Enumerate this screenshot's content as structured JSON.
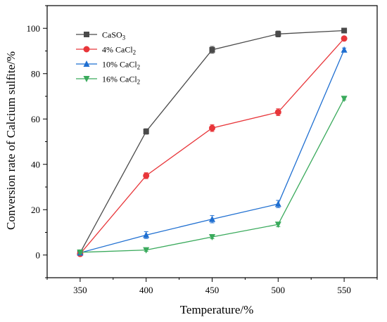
{
  "chart_data": {
    "type": "line",
    "xlabel": "Temperature/%",
    "ylabel": "Conversion rate of Calcium sulfite/%",
    "xlim": [
      325,
      575
    ],
    "ylim": [
      -10,
      110
    ],
    "x": [
      350,
      400,
      450,
      500,
      550
    ],
    "x_ticks": [
      "350",
      "400",
      "450",
      "500",
      "550"
    ],
    "y_ticks": [
      "0",
      "20",
      "40",
      "60",
      "80",
      "100"
    ],
    "y_tick_values": [
      0,
      20,
      40,
      60,
      80,
      100
    ],
    "legend_position": "top-left",
    "grid": false,
    "series": [
      {
        "name": "CaSO3",
        "name_main": "CaSO",
        "name_sub": "3",
        "color": "#4a4a4a",
        "marker": "square",
        "values": [
          1,
          54.5,
          90.5,
          97.5,
          99
        ],
        "errors": [
          0.8,
          1.2,
          1.5,
          1.3,
          0.8
        ]
      },
      {
        "name": "4% CaCl2",
        "name_main": "4% CaCl",
        "name_sub": "2",
        "color": "#e8363a",
        "marker": "circle",
        "values": [
          0.5,
          35,
          56,
          63,
          95.5
        ],
        "errors": [
          0.8,
          1.3,
          1.5,
          1.5,
          0.8
        ]
      },
      {
        "name": "10% CaCl2",
        "name_main": "10% CaCl",
        "name_sub": "2",
        "color": "#1f6fd1",
        "marker": "triangle-up",
        "values": [
          1,
          8.8,
          15.8,
          22.5,
          90.5
        ],
        "errors": [
          0.8,
          1.5,
          1.6,
          1.6,
          0.8
        ]
      },
      {
        "name": "16% CaCl2",
        "name_main": "16% CaCl",
        "name_sub": "2",
        "color": "#3aaa5c",
        "marker": "triangle-down",
        "values": [
          1.2,
          2.2,
          8,
          13.5,
          69
        ],
        "errors": [
          0.6,
          0.6,
          0.8,
          1,
          0.6
        ]
      }
    ]
  }
}
